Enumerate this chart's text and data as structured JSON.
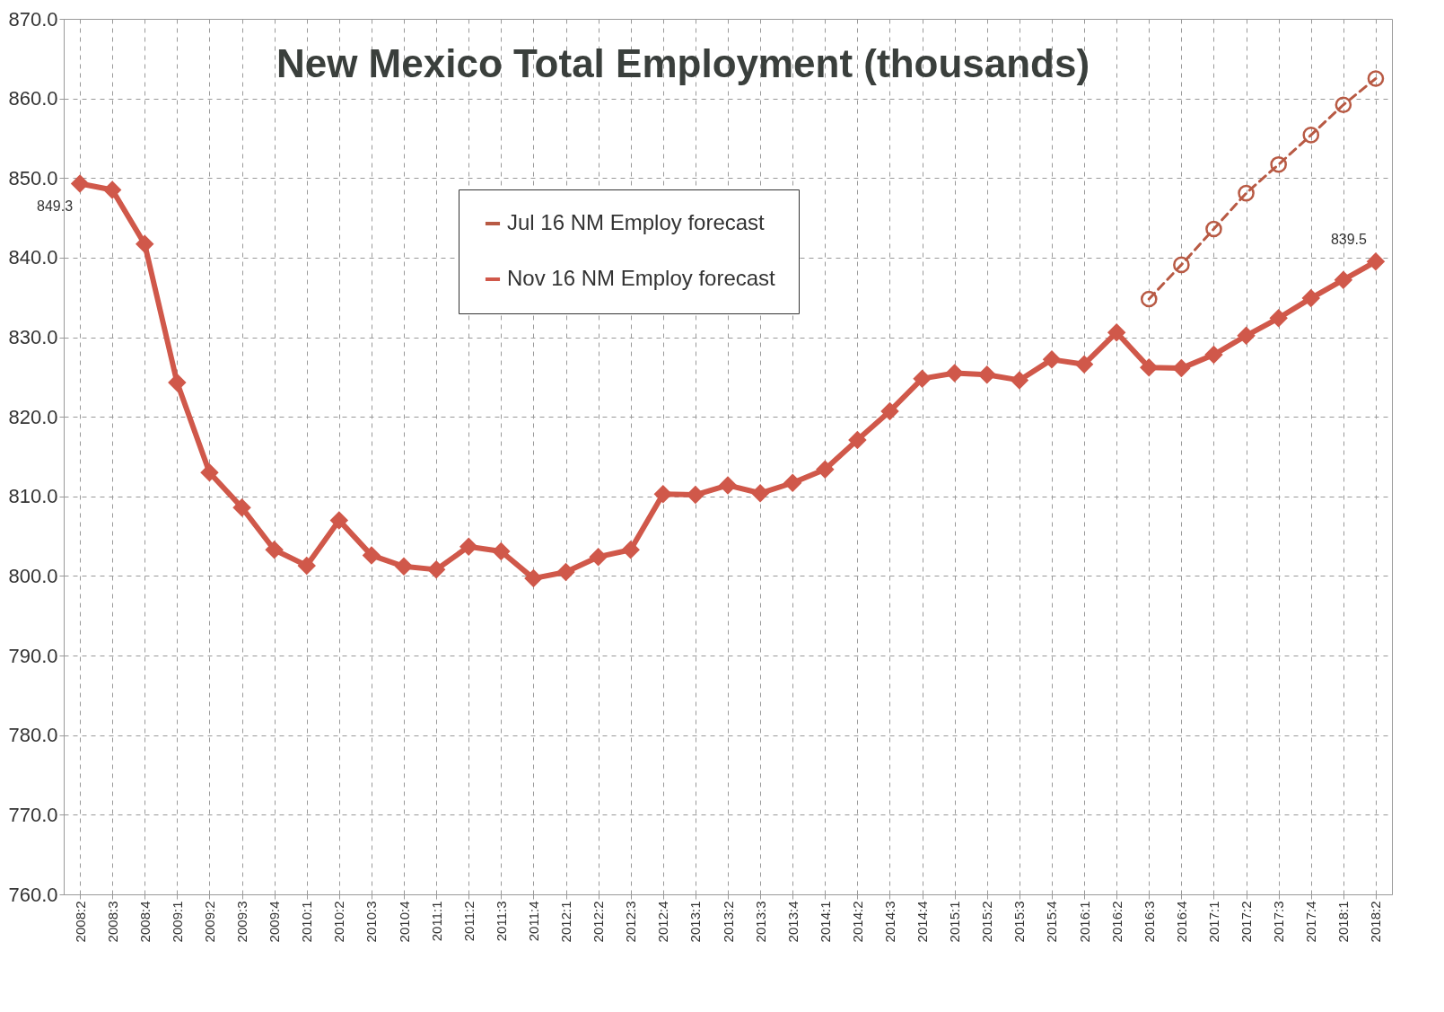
{
  "chart_data": {
    "type": "line",
    "title": "New Mexico Total Employment (thousands)",
    "categories": [
      "2008:2",
      "2008:3",
      "2008:4",
      "2009:1",
      "2009:2",
      "2009:3",
      "2009:4",
      "2010:1",
      "2010:2",
      "2010:3",
      "2010:4",
      "2011:1",
      "2011:2",
      "2011:3",
      "2011:4",
      "2012:1",
      "2012:2",
      "2012:3",
      "2012:4",
      "2013:1",
      "2013:2",
      "2013:3",
      "2013:4",
      "2014:1",
      "2014:2",
      "2014:3",
      "2014:4",
      "2015:1",
      "2015:2",
      "2015:3",
      "2015:4",
      "2016:1",
      "2016:2",
      "2016:3",
      "2016:4",
      "2017:1",
      "2017:2",
      "2017:3",
      "2017:4",
      "2018:1",
      "2018:2"
    ],
    "series": [
      {
        "name": "Jul 16 NM Employ forecast",
        "color": "#b85a44",
        "marker": "circle",
        "line_style": "dashed",
        "values": [
          null,
          null,
          null,
          null,
          null,
          null,
          null,
          null,
          null,
          null,
          null,
          null,
          null,
          null,
          null,
          null,
          null,
          null,
          null,
          null,
          null,
          null,
          null,
          null,
          null,
          null,
          null,
          null,
          null,
          null,
          null,
          null,
          null,
          834.8,
          839.1,
          843.6,
          848.1,
          851.7,
          855.4,
          859.2,
          862.5
        ]
      },
      {
        "name": "Nov 16 NM Employ forecast",
        "color": "#d0584a",
        "marker": "diamond",
        "line_style": "solid",
        "values": [
          849.3,
          848.5,
          841.7,
          824.3,
          813.0,
          808.6,
          803.3,
          801.3,
          807.0,
          802.6,
          801.2,
          800.8,
          803.7,
          803.1,
          799.7,
          800.5,
          802.4,
          803.3,
          810.3,
          810.2,
          811.4,
          810.4,
          811.7,
          813.4,
          817.1,
          820.7,
          824.8,
          825.5,
          825.3,
          824.6,
          827.2,
          826.6,
          830.6,
          826.2,
          826.1,
          827.8,
          830.2,
          832.4,
          834.9,
          837.2,
          839.5
        ]
      }
    ],
    "ylim": [
      760,
      870
    ],
    "yticks": [
      {
        "value": 760,
        "label": "760.0"
      },
      {
        "value": 770,
        "label": "770.0"
      },
      {
        "value": 780,
        "label": "780.0"
      },
      {
        "value": 790,
        "label": "790.0"
      },
      {
        "value": 800,
        "label": "800.0"
      },
      {
        "value": 810,
        "label": "810.0"
      },
      {
        "value": 820,
        "label": "820.0"
      },
      {
        "value": 830,
        "label": "830.0"
      },
      {
        "value": 840,
        "label": "840.0"
      },
      {
        "value": 850,
        "label": "850.0"
      },
      {
        "value": 860,
        "label": "860.0"
      },
      {
        "value": 870,
        "label": "870.0"
      }
    ],
    "grid": true,
    "legend": "top",
    "annotations": [
      {
        "text": "849.3",
        "x": "2008:2",
        "y": 849.3
      },
      {
        "text": "839.5",
        "x": "2018:2",
        "y": 839.5
      }
    ]
  }
}
